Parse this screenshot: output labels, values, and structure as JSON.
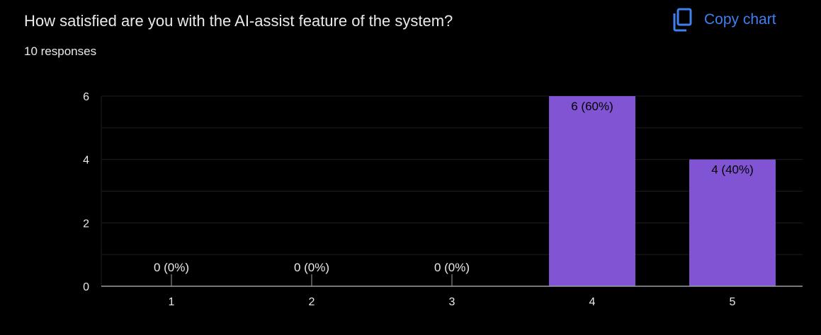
{
  "header": {
    "question": "How satisfied are you with the AI-assist feature of the system?",
    "responses": "10 responses",
    "copy_label": "Copy chart",
    "copy_icon": "copy-icon"
  },
  "colors": {
    "bar": "#8154d4",
    "accent": "#3f7ff0",
    "background": "#000000",
    "grid": "#1e1e1e",
    "axis": "#9aa0a6",
    "text": "#e8eaed"
  },
  "chart_data": {
    "type": "bar",
    "categories": [
      "1",
      "2",
      "3",
      "4",
      "5"
    ],
    "values": [
      0,
      0,
      0,
      6,
      4
    ],
    "data_labels": [
      "0 (0%)",
      "0 (0%)",
      "0 (0%)",
      "6 (60%)",
      "4 (40%)"
    ],
    "y_ticks": [
      "0",
      "2",
      "4",
      "6"
    ],
    "ylim": [
      0,
      6
    ],
    "grid": true,
    "legend": "none"
  }
}
